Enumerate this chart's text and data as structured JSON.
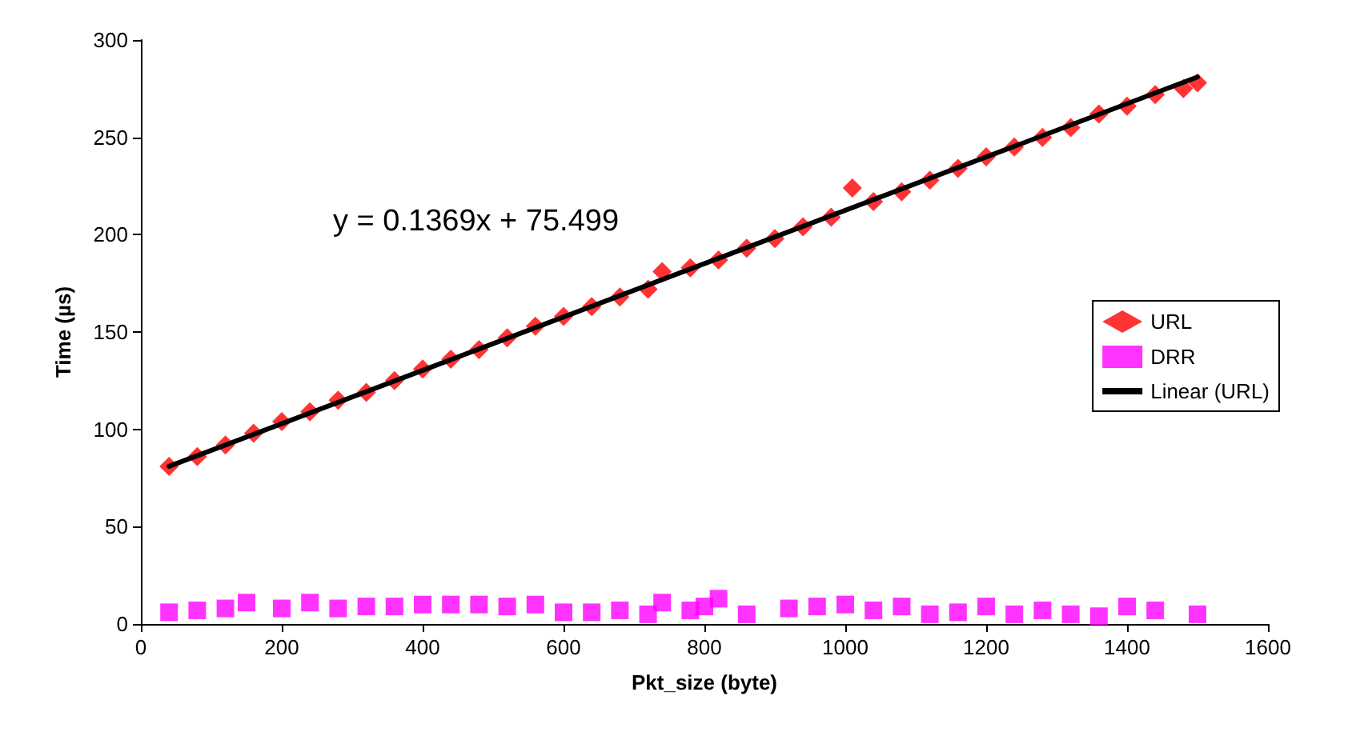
{
  "chart_data": {
    "type": "scatter",
    "xlabel": "Pkt_size (byte)",
    "ylabel": "Time (µs)",
    "xlim": [
      0,
      1600
    ],
    "xticks": [
      0,
      200,
      400,
      600,
      800,
      1000,
      1200,
      1400,
      1600
    ],
    "ylim": [
      0,
      300
    ],
    "yticks": [
      0,
      50,
      100,
      150,
      200,
      250,
      300
    ],
    "grid": false,
    "legend": "right",
    "annotations": [
      "y = 0.1369x + 75.499"
    ],
    "series": [
      {
        "name": "URL",
        "color": "#ff0000",
        "marker": "diamond",
        "x": [
          40,
          80,
          120,
          160,
          200,
          240,
          280,
          320,
          360,
          400,
          440,
          480,
          520,
          560,
          600,
          640,
          680,
          720,
          740,
          780,
          820,
          860,
          900,
          940,
          980,
          1010,
          1040,
          1080,
          1120,
          1160,
          1200,
          1240,
          1280,
          1320,
          1360,
          1400,
          1440,
          1480,
          1500
        ],
        "values": [
          81,
          86,
          92,
          98,
          104,
          109,
          115,
          119,
          125,
          131,
          136,
          141,
          147,
          153,
          158,
          163,
          168,
          172,
          181,
          183,
          187,
          193,
          198,
          204,
          209,
          224,
          217,
          222,
          228,
          234,
          240,
          245,
          250,
          255,
          262,
          266,
          272,
          275,
          278
        ]
      },
      {
        "name": "DRR",
        "color": "#ff00ff",
        "marker": "square",
        "x": [
          40,
          80,
          120,
          150,
          200,
          240,
          280,
          320,
          360,
          400,
          440,
          480,
          520,
          560,
          600,
          640,
          680,
          720,
          740,
          780,
          800,
          820,
          860,
          920,
          960,
          1000,
          1040,
          1080,
          1120,
          1160,
          1200,
          1240,
          1280,
          1320,
          1360,
          1400,
          1440,
          1500
        ],
        "values": [
          6,
          7,
          8,
          11,
          8,
          11,
          8,
          9,
          9,
          10,
          10,
          10,
          9,
          10,
          6,
          6,
          7,
          5,
          11,
          7,
          9,
          13,
          5,
          8,
          9,
          10,
          7,
          9,
          5,
          6,
          9,
          5,
          7,
          5,
          4,
          9,
          7,
          5
        ]
      },
      {
        "name": "Linear (URL)",
        "type": "line",
        "color": "#000000",
        "marker": "none",
        "line_style": "solid",
        "x": [
          40,
          1500
        ],
        "values": [
          81,
          281
        ]
      }
    ]
  }
}
